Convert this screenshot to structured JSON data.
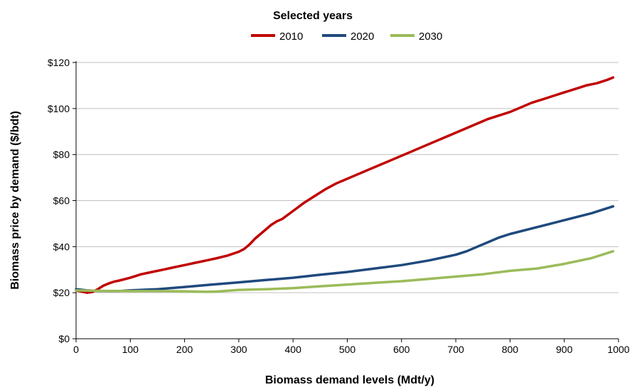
{
  "chart_data": {
    "type": "line",
    "title": "",
    "legend": {
      "title": "Selected years",
      "placement": "top-center"
    },
    "xlabel": "Biomass demand levels (Mdt/y)",
    "ylabel": "Biomass price by demand ($/bdt)",
    "xlim": [
      0,
      1000
    ],
    "ylim": [
      0,
      120
    ],
    "x_ticks": [
      0,
      100,
      200,
      300,
      400,
      500,
      600,
      700,
      800,
      900,
      1000
    ],
    "y_ticks": [
      0,
      20,
      40,
      60,
      80,
      100,
      120
    ],
    "y_tick_labels": [
      "$0",
      "$20",
      "$40",
      "$60",
      "$80",
      "$100",
      "$120"
    ],
    "grid": "horizontal",
    "series": [
      {
        "name": "2010",
        "color": "#c00000",
        "x": [
          0,
          10,
          20,
          30,
          40,
          50,
          60,
          70,
          80,
          100,
          120,
          140,
          160,
          180,
          200,
          220,
          240,
          260,
          280,
          300,
          310,
          320,
          330,
          340,
          350,
          360,
          370,
          380,
          400,
          420,
          440,
          460,
          480,
          500,
          520,
          540,
          560,
          580,
          600,
          620,
          640,
          660,
          680,
          700,
          720,
          740,
          760,
          780,
          800,
          820,
          840,
          860,
          880,
          900,
          920,
          940,
          960,
          980,
          990
        ],
        "y": [
          21,
          20.5,
          20,
          20.3,
          21.5,
          23,
          24,
          24.8,
          25.3,
          26.5,
          28,
          29,
          30,
          31,
          32,
          33,
          34,
          35,
          36.2,
          37.8,
          39,
          41,
          43.5,
          45.5,
          47.5,
          49.5,
          51,
          52,
          55.5,
          59,
          62,
          65,
          67.5,
          69.5,
          71.5,
          73.5,
          75.5,
          77.5,
          79.5,
          81.5,
          83.5,
          85.5,
          87.5,
          89.5,
          91.5,
          93.5,
          95.5,
          97,
          98.5,
          100.5,
          102.5,
          104,
          105.5,
          107,
          108.5,
          110,
          111,
          112.5,
          113.5
        ]
      },
      {
        "name": "2020",
        "color": "#1f497d",
        "x": [
          0,
          20,
          40,
          60,
          80,
          100,
          150,
          200,
          250,
          300,
          350,
          400,
          450,
          500,
          550,
          600,
          650,
          700,
          720,
          740,
          760,
          780,
          800,
          850,
          900,
          950,
          990
        ],
        "y": [
          21.5,
          21,
          20.8,
          20.7,
          20.7,
          21,
          21.5,
          22.5,
          23.5,
          24.5,
          25.5,
          26.5,
          27.8,
          29,
          30.5,
          32,
          34,
          36.5,
          38,
          40,
          42,
          44,
          45.5,
          48.5,
          51.5,
          54.5,
          57.5
        ]
      },
      {
        "name": "2030",
        "color": "#9bbb59",
        "x": [
          0,
          50,
          100,
          150,
          200,
          240,
          260,
          300,
          350,
          400,
          450,
          500,
          550,
          600,
          650,
          700,
          750,
          800,
          850,
          900,
          950,
          990
        ],
        "y": [
          21,
          20.8,
          20.7,
          20.7,
          20.6,
          20.4,
          20.5,
          21.2,
          21.5,
          22,
          22.8,
          23.5,
          24.3,
          25,
          26,
          27,
          28,
          29.5,
          30.5,
          32.5,
          35,
          38
        ]
      }
    ]
  }
}
